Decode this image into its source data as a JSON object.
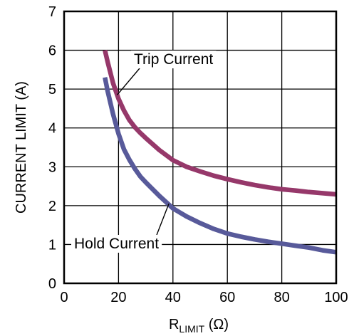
{
  "chart_data": {
    "type": "line",
    "title": "",
    "xlabel": {
      "main": "R",
      "sub": "LIMIT",
      "unit": " (Ω)"
    },
    "ylabel": "CURRENT LIMIT (A)",
    "xlim": [
      0,
      100
    ],
    "ylim": [
      0,
      7
    ],
    "xticks": [
      "0",
      "20",
      "40",
      "60",
      "80",
      "100"
    ],
    "yticks": [
      "0",
      "1",
      "2",
      "3",
      "4",
      "5",
      "6",
      "7"
    ],
    "grid": true,
    "legend": "none",
    "annotations": [
      "Trip Current",
      "Hold Current"
    ],
    "series": [
      {
        "name": "Trip Current",
        "color": "#96386a",
        "x": [
          15,
          16,
          18,
          20,
          22,
          24,
          26,
          28,
          30,
          35,
          40,
          45,
          50,
          55,
          60,
          65,
          70,
          75,
          80,
          85,
          90,
          95,
          100
        ],
        "y": [
          6.0,
          5.7,
          5.15,
          4.75,
          4.45,
          4.2,
          4.02,
          3.87,
          3.74,
          3.43,
          3.17,
          3.0,
          2.88,
          2.77,
          2.68,
          2.6,
          2.53,
          2.47,
          2.42,
          2.39,
          2.35,
          2.32,
          2.29
        ]
      },
      {
        "name": "Hold Current",
        "color": "#585a9a",
        "x": [
          15,
          16,
          18,
          20,
          22,
          24,
          26,
          28,
          30,
          35,
          40,
          45,
          50,
          55,
          60,
          65,
          70,
          75,
          80,
          85,
          90,
          95,
          100
        ],
        "y": [
          5.3,
          4.95,
          4.35,
          3.85,
          3.45,
          3.18,
          2.95,
          2.75,
          2.6,
          2.25,
          1.93,
          1.72,
          1.55,
          1.4,
          1.28,
          1.2,
          1.13,
          1.07,
          1.02,
          0.97,
          0.92,
          0.85,
          0.8
        ]
      }
    ]
  }
}
